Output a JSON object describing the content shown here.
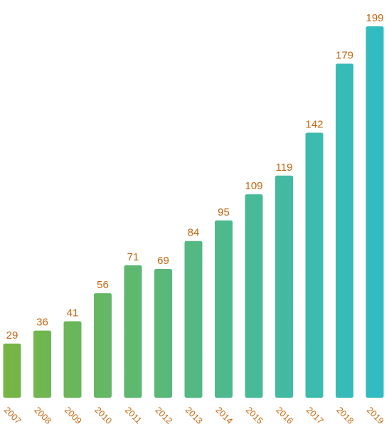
{
  "chart_data": {
    "type": "bar",
    "title": "",
    "xlabel": "",
    "ylabel": "",
    "categories": [
      "2007",
      "2008",
      "2009",
      "2010",
      "2011",
      "2012",
      "2013",
      "2014",
      "2015",
      "2016",
      "2017",
      "2018",
      "2019"
    ],
    "values": [
      29,
      36,
      41,
      56,
      71,
      69,
      84,
      95,
      109,
      119,
      142,
      179,
      199
    ],
    "ylim": [
      0,
      199
    ],
    "grid": false,
    "legend": "none",
    "colors": {
      "bar_gradient_start": "#78b542",
      "bar_gradient_end": "#2fbcc6",
      "label": "#c4660f"
    }
  }
}
